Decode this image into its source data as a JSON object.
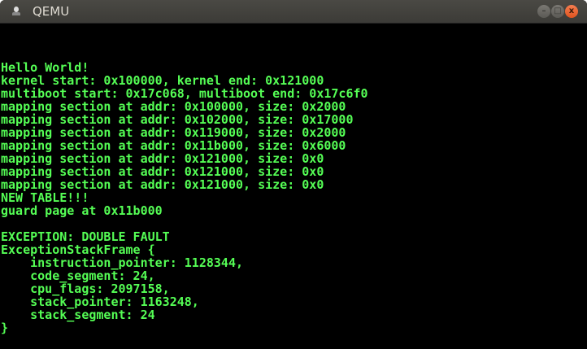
{
  "window": {
    "title": "QEMU",
    "minimize_label": "–",
    "maximize_label": "□",
    "close_label": "x"
  },
  "colors": {
    "terminal_text": "#55fe55",
    "terminal_bg": "#000000",
    "close_button": "#e95420"
  },
  "console": {
    "lines": [
      "Hello World!",
      "kernel start: 0x100000, kernel end: 0x121000",
      "multiboot start: 0x17c068, multiboot end: 0x17c6f0",
      "mapping section at addr: 0x100000, size: 0x2000",
      "mapping section at addr: 0x102000, size: 0x17000",
      "mapping section at addr: 0x119000, size: 0x2000",
      "mapping section at addr: 0x11b000, size: 0x6000",
      "mapping section at addr: 0x121000, size: 0x0",
      "mapping section at addr: 0x121000, size: 0x0",
      "mapping section at addr: 0x121000, size: 0x0",
      "NEW TABLE!!!",
      "guard page at 0x11b000",
      "",
      "EXCEPTION: DOUBLE FAULT",
      "ExceptionStackFrame {",
      "    instruction_pointer: 1128344,",
      "    code_segment: 24,",
      "    cpu_flags: 2097158,",
      "    stack_pointer: 1163248,",
      "    stack_segment: 24",
      "}"
    ]
  }
}
